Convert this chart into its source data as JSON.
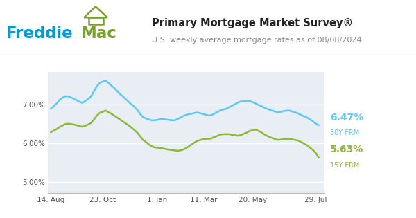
{
  "title": "Primary Mortgage Market Survey®",
  "subtitle": "U.S. weekly average mortgage rates as of 08/08/2024",
  "freddie_blue": "#009BDE",
  "freddie_green": "#78A22F",
  "line_30y_color": "#5BC8F5",
  "line_15y_color": "#8CB832",
  "label_30y": "6.47%",
  "label_30y_sub": "30Y FRM",
  "label_15y": "5.63%",
  "label_15y_sub": "15Y FRM",
  "bg_color": "#FFFFFF",
  "chart_bg": "#E8EEF4",
  "yticks": [
    5.0,
    6.0,
    7.0
  ],
  "ylim": [
    4.72,
    7.85
  ],
  "xtick_labels": [
    "14. Aug",
    "23. Oct",
    "1. Jan",
    "11. Mar",
    "20. May",
    "29. Jul"
  ],
  "xtick_positions": [
    0,
    18,
    37,
    53,
    70,
    92
  ],
  "x_data": [
    0,
    1,
    2,
    3,
    4,
    5,
    6,
    7,
    8,
    9,
    10,
    11,
    12,
    13,
    14,
    15,
    16,
    17,
    18,
    19,
    20,
    21,
    22,
    23,
    24,
    25,
    26,
    27,
    28,
    29,
    30,
    31,
    32,
    33,
    34,
    35,
    36,
    37,
    38,
    39,
    40,
    41,
    42,
    43,
    44,
    45,
    46,
    47,
    48,
    49,
    50,
    51,
    52,
    53,
    54,
    55,
    56,
    57,
    58,
    59,
    60,
    61,
    62,
    63,
    64,
    65,
    66,
    67,
    68,
    69,
    70,
    71,
    72,
    73,
    74,
    75,
    76,
    77,
    78,
    79,
    80,
    81,
    82,
    83,
    84,
    85,
    86,
    87,
    88,
    89,
    90,
    91,
    92,
    93
  ],
  "y_30y": [
    6.9,
    6.96,
    7.03,
    7.12,
    7.18,
    7.22,
    7.22,
    7.19,
    7.16,
    7.12,
    7.08,
    7.05,
    7.1,
    7.15,
    7.22,
    7.35,
    7.48,
    7.57,
    7.6,
    7.63,
    7.57,
    7.5,
    7.44,
    7.36,
    7.28,
    7.22,
    7.15,
    7.08,
    7.01,
    6.95,
    6.87,
    6.77,
    6.68,
    6.65,
    6.62,
    6.6,
    6.6,
    6.61,
    6.63,
    6.63,
    6.62,
    6.61,
    6.6,
    6.6,
    6.63,
    6.67,
    6.71,
    6.74,
    6.76,
    6.77,
    6.79,
    6.8,
    6.78,
    6.76,
    6.74,
    6.72,
    6.74,
    6.78,
    6.82,
    6.86,
    6.88,
    6.9,
    6.94,
    6.98,
    7.02,
    7.06,
    7.09,
    7.09,
    7.1,
    7.1,
    7.07,
    7.04,
    7.0,
    6.97,
    6.93,
    6.9,
    6.87,
    6.85,
    6.82,
    6.8,
    6.82,
    6.84,
    6.85,
    6.85,
    6.82,
    6.8,
    6.77,
    6.73,
    6.7,
    6.67,
    6.62,
    6.57,
    6.51,
    6.47
  ],
  "y_15y": [
    6.29,
    6.33,
    6.37,
    6.42,
    6.46,
    6.5,
    6.51,
    6.5,
    6.49,
    6.47,
    6.45,
    6.43,
    6.46,
    6.49,
    6.53,
    6.62,
    6.72,
    6.79,
    6.82,
    6.85,
    6.81,
    6.77,
    6.72,
    6.67,
    6.62,
    6.57,
    6.52,
    6.47,
    6.41,
    6.35,
    6.28,
    6.19,
    6.09,
    6.04,
    5.98,
    5.93,
    5.9,
    5.89,
    5.88,
    5.87,
    5.85,
    5.84,
    5.83,
    5.82,
    5.81,
    5.82,
    5.84,
    5.88,
    5.93,
    5.98,
    6.03,
    6.07,
    6.09,
    6.11,
    6.12,
    6.12,
    6.14,
    6.17,
    6.2,
    6.23,
    6.24,
    6.24,
    6.24,
    6.22,
    6.21,
    6.2,
    6.22,
    6.25,
    6.28,
    6.32,
    6.34,
    6.36,
    6.33,
    6.29,
    6.24,
    6.2,
    6.16,
    6.14,
    6.11,
    6.09,
    6.1,
    6.11,
    6.12,
    6.12,
    6.1,
    6.09,
    6.07,
    6.03,
    5.99,
    5.95,
    5.89,
    5.83,
    5.75,
    5.63
  ]
}
